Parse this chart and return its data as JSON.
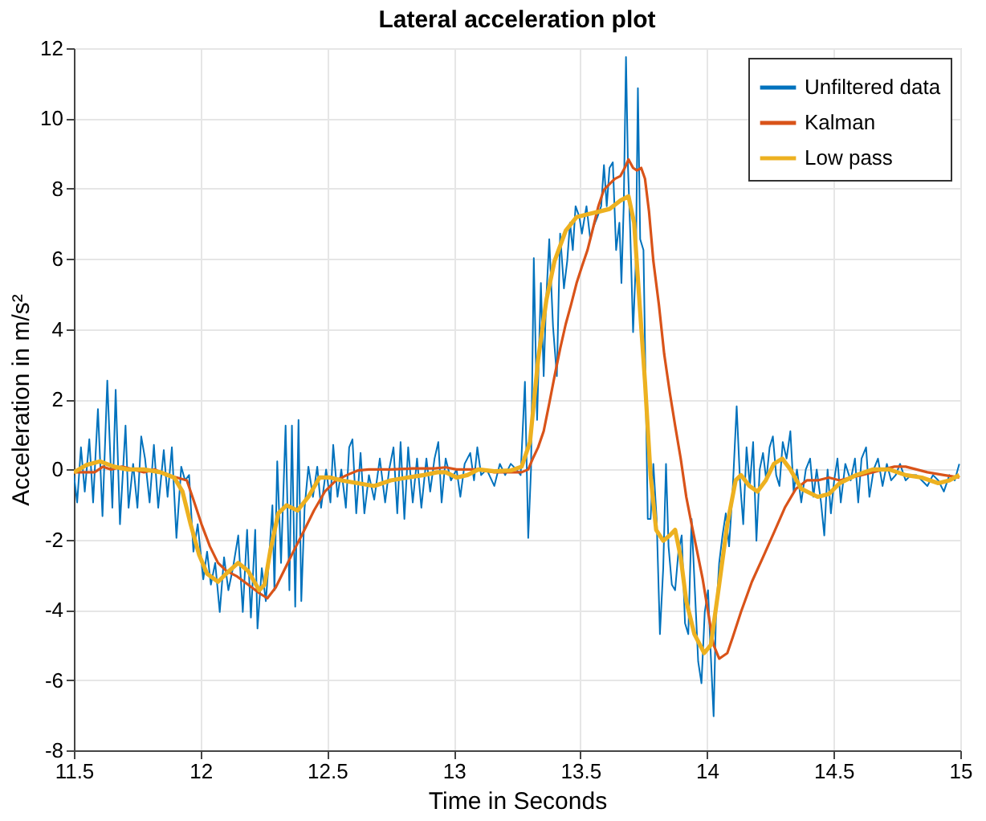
{
  "chart_data": {
    "type": "line",
    "title": "Lateral acceleration plot",
    "xlabel": "Time in Seconds",
    "ylabel": "Acceleration in m/s²",
    "xlim": [
      11.5,
      15
    ],
    "xticks": [
      11.5,
      12,
      12.5,
      13,
      13.5,
      14,
      14.5,
      15
    ],
    "ylim": [
      -8,
      12
    ],
    "yticks": [
      -8,
      -6,
      -4,
      -2,
      0,
      2,
      4,
      6,
      8,
      10,
      12
    ],
    "grid": true,
    "legend": "top right",
    "series": [
      {
        "name": "Unfiltered data",
        "color": "#0072bd",
        "x": [
          11.5,
          11.513,
          11.528,
          11.543,
          11.561,
          11.576,
          11.595,
          11.613,
          11.632,
          11.652,
          11.665,
          11.682,
          11.704,
          11.716,
          11.734,
          11.751,
          11.766,
          11.781,
          11.799,
          11.816,
          11.833,
          11.855,
          11.87,
          11.887,
          11.905,
          11.924,
          11.939,
          11.955,
          11.972,
          11.989,
          12.011,
          12.026,
          12.041,
          12.058,
          12.076,
          12.093,
          12.11,
          12.128,
          12.149,
          12.167,
          12.184,
          12.199,
          12.216,
          12.225,
          12.242,
          12.258,
          12.271,
          12.284,
          12.292,
          12.303,
          12.318,
          12.336,
          12.351,
          12.361,
          12.374,
          12.387,
          12.398,
          12.411,
          12.426,
          12.444,
          12.461,
          12.476,
          12.496,
          12.513,
          12.524,
          12.541,
          12.556,
          12.574,
          12.587,
          12.6,
          12.615,
          12.632,
          12.647,
          12.665,
          12.686,
          12.708,
          12.729,
          12.745,
          12.762,
          12.777,
          12.79,
          12.805,
          12.82,
          12.838,
          12.855,
          12.872,
          12.892,
          12.907,
          12.924,
          12.939,
          12.952,
          12.968,
          12.989,
          13.011,
          13.026,
          13.043,
          13.065,
          13.08,
          13.093,
          13.108,
          13.13,
          13.16,
          13.182,
          13.203,
          13.225,
          13.247,
          13.264,
          13.281,
          13.294,
          13.305,
          13.316,
          13.329,
          13.344,
          13.355,
          13.364,
          13.377,
          13.392,
          13.407,
          13.42,
          13.435,
          13.448,
          13.459,
          13.47,
          13.481,
          13.496,
          13.506,
          13.524,
          13.539,
          13.55,
          13.567,
          13.582,
          13.593,
          13.604,
          13.615,
          13.628,
          13.641,
          13.654,
          13.662,
          13.671,
          13.68,
          13.688,
          13.697,
          13.708,
          13.719,
          13.727,
          13.736,
          13.749,
          13.766,
          13.777,
          13.788,
          13.801,
          13.814,
          13.827,
          13.838,
          13.848,
          13.861,
          13.874,
          13.887,
          13.9,
          13.913,
          13.926,
          13.939,
          13.952,
          13.965,
          13.978,
          13.991,
          14.004,
          14.013,
          14.026,
          14.035,
          14.048,
          14.061,
          14.074,
          14.087,
          14.102,
          14.117,
          14.13,
          14.143,
          14.156,
          14.169,
          14.182,
          14.195,
          14.208,
          14.221,
          14.234,
          14.247,
          14.26,
          14.273,
          14.286,
          14.299,
          14.314,
          14.329,
          14.342,
          14.355,
          14.372,
          14.39,
          14.407,
          14.42,
          14.433,
          14.45,
          14.463,
          14.476,
          14.489,
          14.502,
          14.515,
          14.528,
          14.546,
          14.567,
          14.584,
          14.597,
          14.61,
          14.628,
          14.641,
          14.658,
          14.675,
          14.693,
          14.71,
          14.727,
          14.745,
          14.762,
          14.784,
          14.805,
          14.827,
          14.848,
          14.87,
          14.892,
          14.913,
          14.935,
          14.957,
          14.978,
          14.996
        ],
        "values": [
          -0.16,
          -0.94,
          0.63,
          -0.63,
          0.86,
          -0.94,
          1.72,
          -1.33,
          2.53,
          -1.09,
          2.27,
          -1.56,
          1.25,
          -1.09,
          0.16,
          -1.09,
          0.94,
          0.31,
          -0.94,
          0.7,
          -1.09,
          0.55,
          -0.78,
          0.63,
          -1.95,
          0.08,
          -0.31,
          -0.16,
          -2.34,
          -1.56,
          -3.13,
          -2.34,
          -3.28,
          -2.66,
          -4.06,
          -2.5,
          -3.44,
          -2.81,
          -1.88,
          -4.06,
          -1.72,
          -4.22,
          -1.72,
          -4.53,
          -2.81,
          -3.75,
          -2.5,
          -1.02,
          -3.44,
          0.23,
          -2.66,
          1.25,
          -3.44,
          1.25,
          -3.91,
          1.41,
          -3.75,
          -1.09,
          0.08,
          -0.78,
          0.08,
          -1.09,
          0,
          -0.94,
          0.7,
          -0.78,
          0,
          -1.09,
          0.63,
          0.86,
          -1.25,
          0.47,
          -1.25,
          -0.16,
          -0.86,
          0.31,
          -0.94,
          0,
          0.63,
          -1.25,
          0.78,
          -1.41,
          0.63,
          -0.94,
          0.31,
          -1.09,
          0.31,
          -0.63,
          0.31,
          0.78,
          -0.94,
          0.31,
          -0.31,
          0,
          -0.78,
          0.16,
          0.47,
          -0.31,
          0.63,
          -0.16,
          0,
          -0.47,
          0.16,
          -0.16,
          0.16,
          0,
          -0.16,
          2.5,
          -1.95,
          0,
          6.02,
          1.41,
          5.31,
          2.66,
          4.69,
          6.56,
          4.06,
          2.66,
          6.72,
          5.16,
          5.94,
          7.03,
          6.25,
          7.5,
          7.19,
          6.72,
          7.5,
          6.56,
          6.88,
          7.19,
          7.5,
          8.67,
          7.5,
          8.59,
          8.75,
          6.25,
          7.03,
          5.31,
          7.5,
          11.75,
          8.59,
          6.72,
          3.91,
          5.94,
          10.86,
          6.56,
          6.25,
          -1.41,
          -1.41,
          0.16,
          -1.41,
          -4.69,
          -2.81,
          0.16,
          -2.19,
          -3.28,
          -3.44,
          -2.34,
          -1.88,
          -4.38,
          -4.69,
          -1.41,
          -3.44,
          -5.47,
          -6.09,
          -4.06,
          -3.44,
          -5,
          -7.03,
          -4.22,
          -2.66,
          -1.88,
          -1.25,
          -2.19,
          -0.47,
          1.8,
          -0.31,
          -1.56,
          0.63,
          -0.47,
          0.78,
          -2.03,
          0,
          0.47,
          -0.31,
          0.63,
          0.94,
          -0.16,
          -0.47,
          0.78,
          0.31,
          1.09,
          -0.63,
          0,
          -0.94,
          0,
          0.31,
          -0.78,
          0,
          -0.94,
          -1.88,
          0,
          -1.25,
          -0.31,
          0.31,
          -0.94,
          0.16,
          -0.31,
          0.31,
          -0.94,
          0.31,
          0.63,
          -0.78,
          0,
          0.31,
          -0.47,
          0.16,
          -0.31,
          -0.16,
          0.16,
          -0.31,
          -0.16,
          -0.16,
          -0.31,
          -0.47,
          -0.16,
          -0.31,
          -0.63,
          -0.16,
          -0.31,
          0.16
        ]
      },
      {
        "name": "Kalman",
        "color": "#d95319",
        "x": [
          11.5,
          11.539,
          11.582,
          11.615,
          11.647,
          11.69,
          11.734,
          11.777,
          11.82,
          11.864,
          11.907,
          11.946,
          11.972,
          12.004,
          12.037,
          12.069,
          12.102,
          12.145,
          12.188,
          12.232,
          12.264,
          12.297,
          12.329,
          12.361,
          12.405,
          12.448,
          12.491,
          12.535,
          12.578,
          12.621,
          12.665,
          12.751,
          12.838,
          12.924,
          12.968,
          13.011,
          13.097,
          13.16,
          13.225,
          13.268,
          13.294,
          13.312,
          13.333,
          13.355,
          13.377,
          13.398,
          13.42,
          13.442,
          13.463,
          13.485,
          13.506,
          13.528,
          13.55,
          13.571,
          13.593,
          13.615,
          13.636,
          13.658,
          13.675,
          13.69,
          13.708,
          13.723,
          13.74,
          13.755,
          13.771,
          13.788,
          13.81,
          13.831,
          13.853,
          13.874,
          13.896,
          13.918,
          13.939,
          13.961,
          13.983,
          14.004,
          14.026,
          14.048,
          14.08,
          14.102,
          14.134,
          14.177,
          14.221,
          14.264,
          14.307,
          14.351,
          14.394,
          14.437,
          14.481,
          14.524,
          14.567,
          14.61,
          14.654,
          14.697,
          14.74,
          14.784,
          14.827,
          14.87,
          14.935,
          14.996
        ],
        "values": [
          -0.08,
          -0.08,
          -0.08,
          0.08,
          0,
          0.08,
          0,
          -0.08,
          0,
          -0.16,
          -0.23,
          -0.31,
          -0.86,
          -1.56,
          -2.19,
          -2.66,
          -2.89,
          -3.05,
          -3.28,
          -3.52,
          -3.67,
          -3.36,
          -2.89,
          -2.42,
          -1.8,
          -1.17,
          -0.63,
          -0.31,
          -0.16,
          -0.03,
          0,
          0,
          0.03,
          0.03,
          0.06,
          0,
          0,
          -0.08,
          -0.08,
          -0.08,
          0,
          0.31,
          0.63,
          1.09,
          1.88,
          2.66,
          3.44,
          4.14,
          4.69,
          5.31,
          5.78,
          6.25,
          6.88,
          7.5,
          7.97,
          8.13,
          8.28,
          8.36,
          8.59,
          8.83,
          8.59,
          8.52,
          8.59,
          8.28,
          7.34,
          5.94,
          4.69,
          3.28,
          2.19,
          1.25,
          0.31,
          -0.78,
          -1.56,
          -2.34,
          -3.13,
          -4.06,
          -5,
          -5.39,
          -5.23,
          -4.77,
          -4.06,
          -3.2,
          -2.5,
          -1.8,
          -1.09,
          -0.55,
          -0.31,
          -0.31,
          -0.23,
          -0.31,
          -0.23,
          -0.16,
          -0.08,
          0,
          0.08,
          0.08,
          0,
          -0.08,
          -0.16,
          -0.23
        ]
      },
      {
        "name": "Low pass",
        "color": "#edb120",
        "x": [
          11.5,
          11.55,
          11.604,
          11.658,
          11.712,
          11.777,
          11.842,
          11.896,
          11.929,
          11.961,
          11.994,
          12.026,
          12.069,
          12.113,
          12.149,
          12.188,
          12.232,
          12.253,
          12.275,
          12.307,
          12.34,
          12.383,
          12.426,
          12.47,
          12.513,
          12.556,
          12.621,
          12.686,
          12.751,
          12.816,
          12.881,
          12.935,
          12.968,
          13.011,
          13.054,
          13.097,
          13.16,
          13.225,
          13.268,
          13.301,
          13.333,
          13.366,
          13.398,
          13.442,
          13.485,
          13.528,
          13.571,
          13.615,
          13.658,
          13.69,
          13.712,
          13.734,
          13.755,
          13.777,
          13.799,
          13.827,
          13.853,
          13.874,
          13.896,
          13.918,
          13.95,
          13.989,
          14.015,
          14.048,
          14.08,
          14.113,
          14.134,
          14.167,
          14.199,
          14.232,
          14.264,
          14.297,
          14.329,
          14.372,
          14.437,
          14.481,
          14.524,
          14.589,
          14.654,
          14.719,
          14.784,
          14.848,
          14.913,
          14.957,
          14.996
        ],
        "values": [
          -0.08,
          0.13,
          0.23,
          0.08,
          0,
          0,
          -0.08,
          -0.23,
          -0.63,
          -1.56,
          -2.42,
          -2.97,
          -3.2,
          -2.89,
          -2.66,
          -2.89,
          -3.44,
          -3.28,
          -2.34,
          -1.25,
          -1.02,
          -1.17,
          -0.78,
          -0.23,
          -0.23,
          -0.31,
          -0.39,
          -0.47,
          -0.31,
          -0.23,
          -0.16,
          -0.08,
          -0.08,
          -0.23,
          -0.16,
          0,
          -0.05,
          -0.03,
          0.08,
          0.78,
          3.13,
          4.84,
          5.94,
          6.8,
          7.19,
          7.27,
          7.34,
          7.42,
          7.66,
          7.78,
          7.03,
          4.69,
          2.5,
          -0.16,
          -1.72,
          -2.03,
          -1.88,
          -1.72,
          -2.5,
          -3.75,
          -4.69,
          -5.23,
          -5,
          -3.28,
          -1.56,
          -0.31,
          -0.16,
          -0.47,
          -0.63,
          -0.31,
          0.16,
          0.31,
          0,
          -0.55,
          -0.78,
          -0.7,
          -0.39,
          -0.16,
          0,
          0,
          -0.16,
          -0.23,
          -0.39,
          -0.31,
          -0.16
        ]
      }
    ]
  }
}
